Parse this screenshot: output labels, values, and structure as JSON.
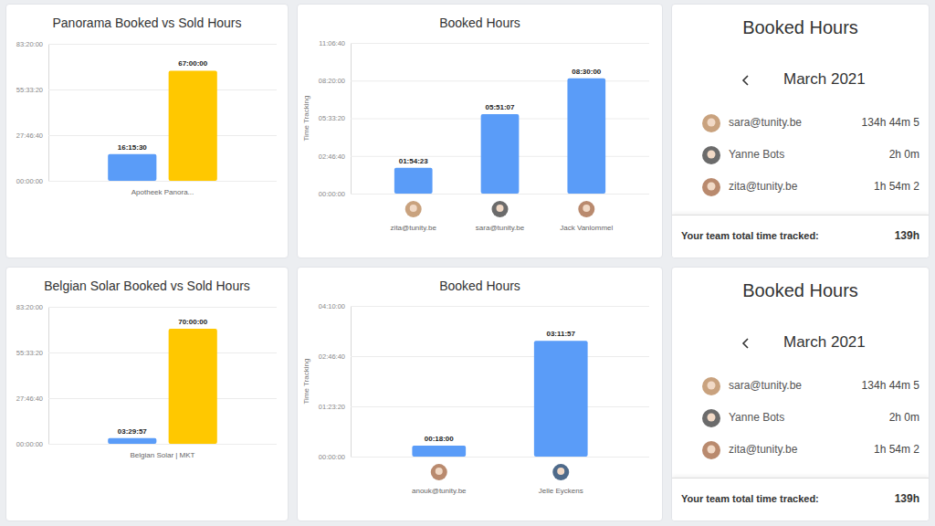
{
  "chart_data": [
    {
      "type": "bar",
      "title": "Panorama Booked vs Sold Hours",
      "categories": [
        "Apotheek Panora..."
      ],
      "series": [
        {
          "color": "#5a9cf8",
          "values": [
            58530
          ],
          "value_labels": [
            "16:15:30"
          ]
        },
        {
          "color": "#ffc800",
          "values": [
            241200
          ],
          "value_labels": [
            "67:00:00"
          ]
        }
      ],
      "ylim": [
        0,
        300000
      ],
      "yticks": [
        {
          "value": 0,
          "label": "00:00:00"
        },
        {
          "value": 100000,
          "label": "27:46:40"
        },
        {
          "value": 200000,
          "label": "55:33:20"
        },
        {
          "value": 300000,
          "label": "83:20:00"
        }
      ],
      "grid": true,
      "data_labels": true
    },
    {
      "type": "bar",
      "title": "Booked Hours",
      "y_label": "Time Tracking",
      "categories": [
        "zita@tunity.be",
        "sara@tunity.be",
        "Jack Vanlommel"
      ],
      "values": [
        6863,
        21067,
        30600
      ],
      "value_labels": [
        "01:54:23",
        "05:51:07",
        "08:30:00"
      ],
      "color": "#5a9cf8",
      "ylim": [
        0,
        40000
      ],
      "yticks": [
        {
          "value": 0,
          "label": "00:00:00"
        },
        {
          "value": 10000,
          "label": "02:46:40"
        },
        {
          "value": 20000,
          "label": "05:33:20"
        },
        {
          "value": 30000,
          "label": "08:20:00"
        },
        {
          "value": 40000,
          "label": "11:06:40"
        }
      ],
      "grid": true,
      "data_labels": true
    },
    {
      "type": "bar",
      "title": "Belgian Solar Booked vs Sold Hours",
      "categories": [
        "Belgian Solar | MKT"
      ],
      "series": [
        {
          "color": "#5a9cf8",
          "values": [
            12597
          ],
          "value_labels": [
            "03:29:57"
          ]
        },
        {
          "color": "#ffc800",
          "values": [
            252000
          ],
          "value_labels": [
            "70:00:00"
          ]
        }
      ],
      "ylim": [
        0,
        300000
      ],
      "yticks": [
        {
          "value": 0,
          "label": "00:00:00"
        },
        {
          "value": 100000,
          "label": "27:46:40"
        },
        {
          "value": 200000,
          "label": "55:33:20"
        },
        {
          "value": 300000,
          "label": "83:20:00"
        }
      ],
      "grid": true,
      "data_labels": true
    },
    {
      "type": "bar",
      "title": "Booked Hours",
      "y_label": "Time Tracking",
      "categories": [
        "anouk@tunity.be",
        "Jelle Eyckens"
      ],
      "values": [
        1080,
        11517
      ],
      "value_labels": [
        "00:18:00",
        "03:11:57"
      ],
      "color": "#5a9cf8",
      "ylim": [
        0,
        15000
      ],
      "yticks": [
        {
          "value": 0,
          "label": "00:00:00"
        },
        {
          "value": 5000,
          "label": "01:23:20"
        },
        {
          "value": 10000,
          "label": "02:46:40"
        },
        {
          "value": 15000,
          "label": "04:10:00"
        }
      ],
      "grid": true,
      "data_labels": true
    }
  ],
  "lists": [
    {
      "title": "Booked Hours",
      "month": "March 2021",
      "rows": [
        {
          "name": "sara@tunity.be",
          "time": "134h 44m 5"
        },
        {
          "name": "Yanne Bots",
          "time": "2h 0m"
        },
        {
          "name": "zita@tunity.be",
          "time": "1h 54m 2"
        }
      ],
      "total_label": "Your team total time tracked:",
      "total": "139h"
    },
    {
      "title": "Booked Hours",
      "month": "March 2021",
      "rows": [
        {
          "name": "sara@tunity.be",
          "time": "134h 44m 5"
        },
        {
          "name": "Yanne Bots",
          "time": "2h 0m"
        },
        {
          "name": "zita@tunity.be",
          "time": "1h 54m 2"
        }
      ],
      "total_label": "Your team total time tracked:",
      "total": "139h"
    }
  ]
}
